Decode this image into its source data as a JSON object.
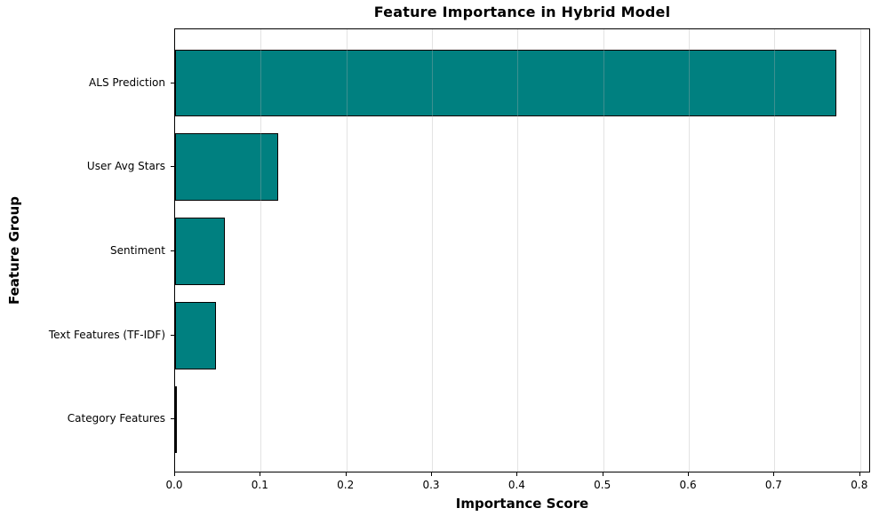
{
  "chart_data": {
    "type": "bar",
    "orientation": "horizontal",
    "title": "Feature Importance in Hybrid Model",
    "xlabel": "Importance Score",
    "ylabel": "Feature Group",
    "categories": [
      "ALS Prediction",
      "User Avg Stars",
      "Sentiment",
      "Text Features (TF-IDF)",
      "Category Features"
    ],
    "values": [
      0.772,
      0.12,
      0.058,
      0.048,
      0.002
    ],
    "xlim": [
      0,
      0.8106
    ],
    "xticks": [
      0.0,
      0.1,
      0.2,
      0.3,
      0.4,
      0.5,
      0.6,
      0.7,
      0.8
    ],
    "xtick_labels": [
      "0.0",
      "0.1",
      "0.2",
      "0.3",
      "0.4",
      "0.5",
      "0.6",
      "0.7",
      "0.8"
    ],
    "grid": "vertical",
    "legend": "none",
    "colors": {
      "bar_fill": "#008080",
      "bar_edge": "#000000",
      "grid_line": "rgba(176,176,176,0.35)",
      "spine": "#000000",
      "text": "#000000",
      "background": "#ffffff"
    }
  }
}
